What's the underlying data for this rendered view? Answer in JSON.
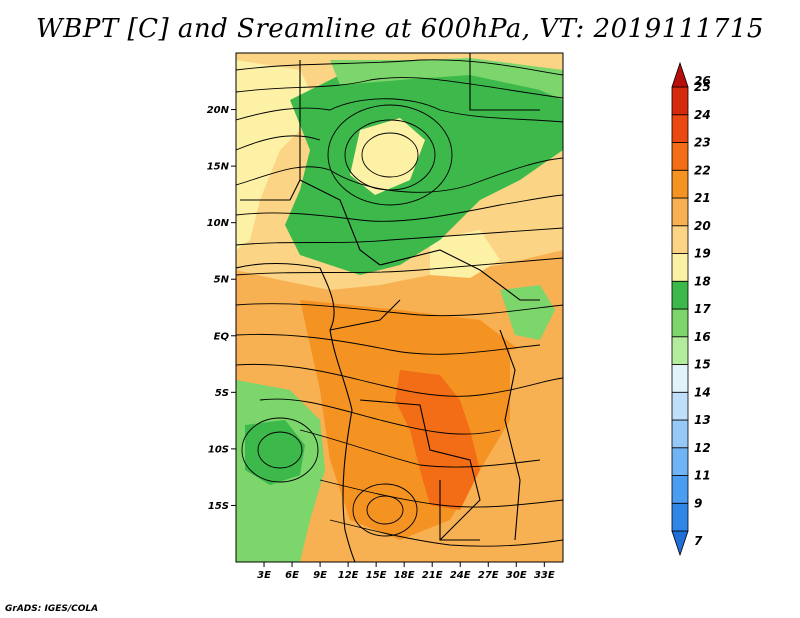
{
  "title": "WBPT [C] and Sreamline at 600hPa, VT: 2019111715",
  "credit": "GrADS: IGES/COLA",
  "map": {
    "lon_range": [
      0,
      35
    ],
    "lat_range": [
      -20,
      25
    ],
    "lat_ticks": [
      {
        "value": 20,
        "label": "20N"
      },
      {
        "value": 15,
        "label": "15N"
      },
      {
        "value": 10,
        "label": "10N"
      },
      {
        "value": 5,
        "label": "5N"
      },
      {
        "value": 0,
        "label": "EQ"
      },
      {
        "value": -5,
        "label": "5S"
      },
      {
        "value": -10,
        "label": "10S"
      },
      {
        "value": -15,
        "label": "15S"
      }
    ],
    "lon_ticks": [
      {
        "value": 3,
        "label": "3E"
      },
      {
        "value": 6,
        "label": "6E"
      },
      {
        "value": 9,
        "label": "9E"
      },
      {
        "value": 12,
        "label": "12E"
      },
      {
        "value": 15,
        "label": "15E"
      },
      {
        "value": 18,
        "label": "18E"
      },
      {
        "value": 21,
        "label": "21E"
      },
      {
        "value": 24,
        "label": "24E"
      },
      {
        "value": 27,
        "label": "27E"
      },
      {
        "value": 30,
        "label": "30E"
      },
      {
        "value": 33,
        "label": "33E"
      }
    ]
  },
  "colorbar": {
    "levels": [
      {
        "label": "7",
        "color": "#1e6fd8"
      },
      {
        "label": "9",
        "color": "#2f86e6"
      },
      {
        "label": "11",
        "color": "#4a9df0"
      },
      {
        "label": "12",
        "color": "#6fb4f5"
      },
      {
        "label": "13",
        "color": "#96c9f7"
      },
      {
        "label": "14",
        "color": "#bfdffb"
      },
      {
        "label": "15",
        "color": "#e2f4f9"
      },
      {
        "label": "16",
        "color": "#b4ec9e"
      },
      {
        "label": "17",
        "color": "#7cd66b"
      },
      {
        "label": "18",
        "color": "#3cb94a"
      },
      {
        "label": "19",
        "color": "#fdf1a6"
      },
      {
        "label": "20",
        "color": "#fbd585"
      },
      {
        "label": "21",
        "color": "#f8b152"
      },
      {
        "label": "22",
        "color": "#f59322"
      },
      {
        "label": "23",
        "color": "#f26d16"
      },
      {
        "label": "24",
        "color": "#ea4a12"
      },
      {
        "label": "25",
        "color": "#d62a0e"
      },
      {
        "label": "26",
        "color": "#b50e0b"
      }
    ]
  }
}
